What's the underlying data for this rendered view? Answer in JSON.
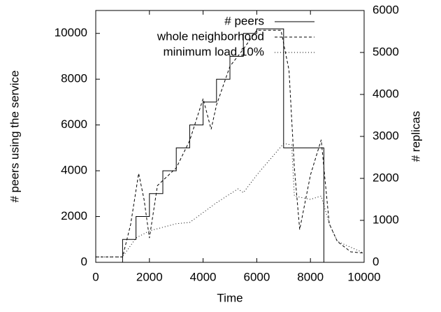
{
  "chart_data": {
    "type": "line",
    "x_label": "Time",
    "y_label": "# peers using the service",
    "y2_label": "# replicas",
    "xlim": [
      0,
      10000
    ],
    "xticks": [
      0,
      2000,
      4000,
      6000,
      8000,
      10000
    ],
    "ylim": [
      0,
      11000
    ],
    "yticks": [
      0,
      2000,
      4000,
      6000,
      8000,
      10000
    ],
    "y2lim": [
      0,
      6000
    ],
    "y2ticks": [
      0,
      1000,
      2000,
      3000,
      4000,
      5000,
      6000
    ],
    "legend": "upper-right",
    "series": [
      {
        "name": "# peers",
        "color": "#000000",
        "dash": "none",
        "x": [
          0,
          1000,
          1000,
          1500,
          1500,
          2000,
          2000,
          2500,
          2500,
          3000,
          3000,
          3500,
          3500,
          4000,
          4000,
          4500,
          4500,
          5000,
          5000,
          5500,
          5500,
          6000,
          6000,
          7000,
          7000,
          8500,
          8500
        ],
        "values": [
          0,
          0,
          1000,
          1000,
          2000,
          2000,
          3000,
          3000,
          4000,
          4000,
          5000,
          5000,
          6000,
          6000,
          7000,
          7000,
          8000,
          8000,
          9000,
          9000,
          10000,
          10000,
          10200,
          10200,
          5000,
          5000,
          0
        ]
      },
      {
        "name": "whole neighborhood",
        "color": "#000000",
        "dash": "4,3",
        "axis": "y2",
        "x": [
          0,
          1000,
          1300,
          1600,
          1800,
          2000,
          2300,
          3000,
          3500,
          4000,
          4300,
          4500,
          5000,
          5500,
          6000,
          6900,
          7200,
          7400,
          7600,
          8000,
          8400,
          8700,
          9000,
          9500,
          10000
        ],
        "values": [
          130,
          130,
          900,
          2120,
          1500,
          580,
          1830,
          2250,
          2900,
          3900,
          3170,
          3750,
          4670,
          5080,
          5530,
          5530,
          4580,
          2250,
          780,
          2080,
          2920,
          920,
          500,
          250,
          220
        ]
      },
      {
        "name": "minimum load 10%",
        "color": "#000000",
        "dash": "1,3",
        "axis": "y2",
        "x": [
          0,
          1000,
          1500,
          2000,
          3000,
          3500,
          4500,
          5300,
          5500,
          6000,
          7000,
          7300,
          7400,
          8000,
          8400,
          8700,
          9000,
          10000
        ],
        "values": [
          130,
          130,
          580,
          750,
          920,
          950,
          1420,
          1750,
          1660,
          2080,
          2830,
          2800,
          1580,
          1500,
          1580,
          920,
          500,
          220
        ]
      }
    ]
  }
}
